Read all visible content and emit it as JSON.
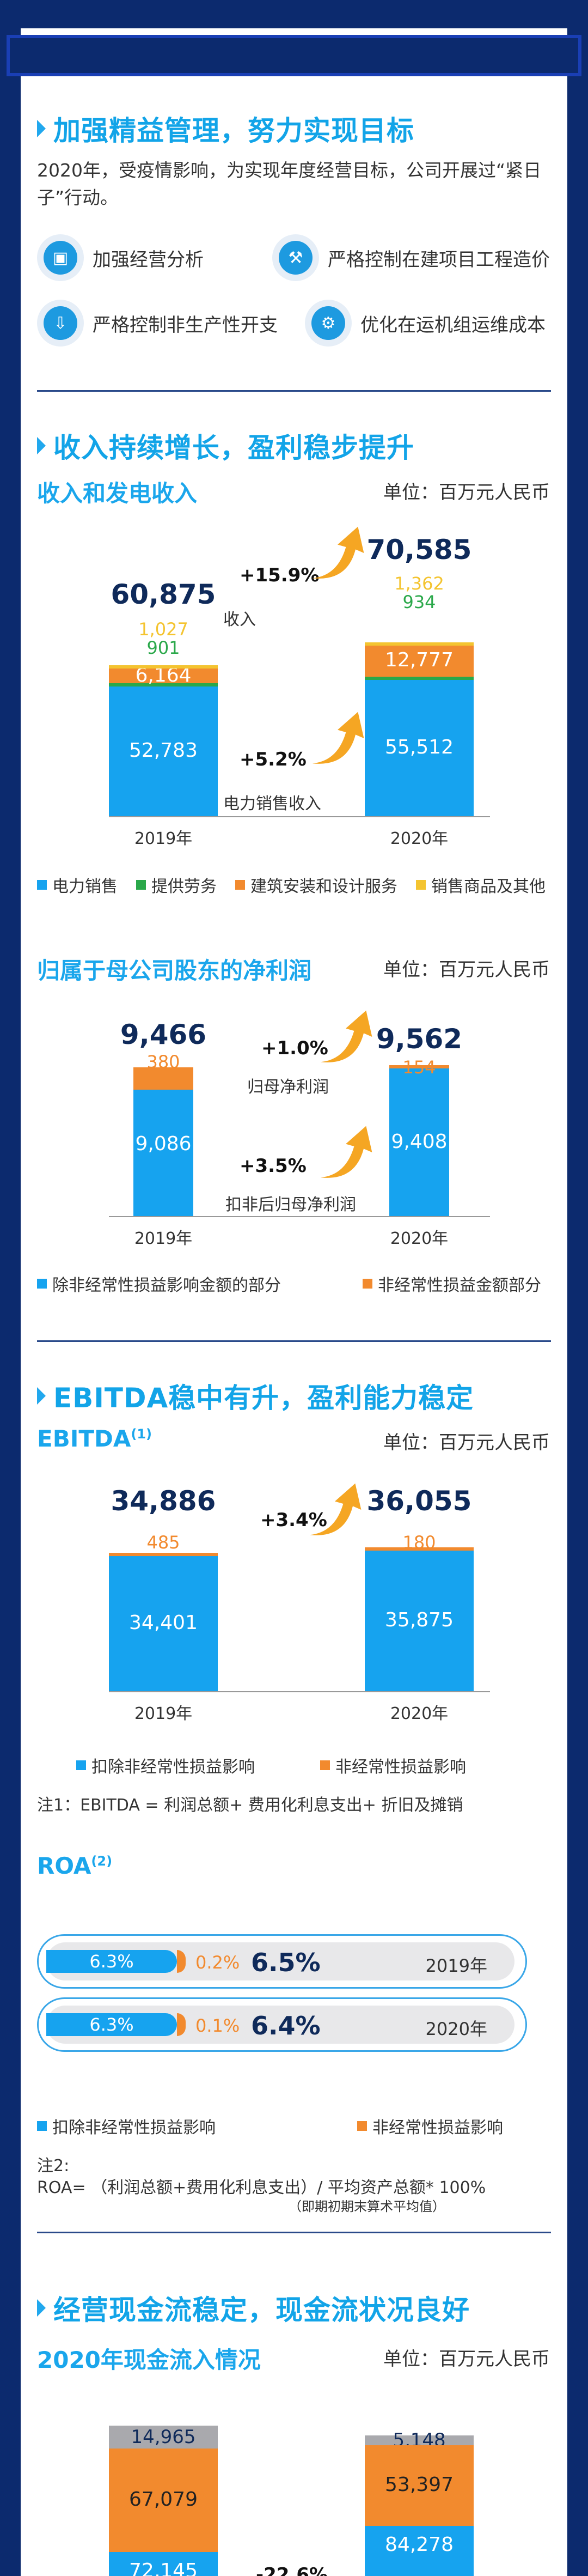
{
  "colors": {
    "blue": "#16a3ef",
    "green": "#2aa84a",
    "orange": "#f28a2e",
    "yellow": "#f4c430",
    "gray": "#a9a9ad",
    "navy": "#0c2a6e"
  },
  "section1": {
    "title": "加强精益管理，努力实现目标",
    "para": "2020年，受疫情影响，为实现年度经营目标，公司开展过“紧日子”行动。",
    "items": [
      {
        "label": "加强经营分析",
        "icon": "analysis-icon"
      },
      {
        "label": "严格控制在建项目工程造价",
        "icon": "construction-icon"
      },
      {
        "label": "严格控制非生产性开支",
        "icon": "expense-down-icon"
      },
      {
        "label": "优化在运机组运维成本",
        "icon": "maintenance-icon"
      }
    ]
  },
  "section2": {
    "title": "收入持续增长，盈利稳步提升",
    "sub": "收入和发电收入",
    "unit": "单位：百万元人民币",
    "chart_data": {
      "type": "bar",
      "categories": [
        "2019年",
        "2020年"
      ],
      "totals": [
        "60,875",
        "70,585"
      ],
      "series": [
        {
          "name": "电力销售",
          "values": [
            52783,
            55512
          ],
          "labels": [
            "52,783",
            "55,512"
          ]
        },
        {
          "name": "提供劳务",
          "values": [
            901,
            934
          ],
          "labels": [
            "901",
            "934"
          ]
        },
        {
          "name": "建筑安装和设计服务",
          "values": [
            6164,
            12777
          ],
          "labels": [
            "6,164",
            "12,777"
          ]
        },
        {
          "name": "销售商品及其他",
          "values": [
            1027,
            1362
          ],
          "labels": [
            "1,027",
            "1,362"
          ]
        }
      ],
      "growth": [
        {
          "pct": "+15.9%",
          "label": "收入"
        },
        {
          "pct": "+5.2%",
          "label": "电力销售收入"
        }
      ]
    }
  },
  "section3": {
    "sub": "归属于母公司股东的净利润",
    "unit": "单位：百万元人民币",
    "chart_data": {
      "type": "bar",
      "categories": [
        "2019年",
        "2020年"
      ],
      "totals": [
        "9,466",
        "9,562"
      ],
      "series": [
        {
          "name": "除非经常性损益影响金额的部分",
          "values": [
            9086,
            9408
          ],
          "labels": [
            "9,086",
            "9,408"
          ]
        },
        {
          "name": "非经常性损益金额部分",
          "values": [
            380,
            154
          ],
          "labels": [
            "380",
            "154"
          ]
        }
      ],
      "growth": [
        {
          "pct": "+1.0%",
          "label": "归母净利润"
        },
        {
          "pct": "+3.5%",
          "label": "扣非后归母净利润"
        }
      ]
    }
  },
  "section4": {
    "title": "EBITDA稳中有升，盈利能力稳定",
    "sub": "EBITDA",
    "sub_sup": "(1)",
    "unit": "单位：百万元人民币",
    "chart_data": {
      "type": "bar",
      "categories": [
        "2019年",
        "2020年"
      ],
      "totals": [
        "34,886",
        "36,055"
      ],
      "series": [
        {
          "name": "扣除非经常性损益影响",
          "values": [
            34401,
            35875
          ],
          "labels": [
            "34,401",
            "35,875"
          ]
        },
        {
          "name": "非经常性损益影响",
          "values": [
            485,
            180
          ],
          "labels": [
            "485",
            "180"
          ]
        }
      ],
      "growth": [
        {
          "pct": "+3.4%"
        }
      ]
    },
    "note": "注1：EBITDA = 利润总额+ 费用化利息支出+ 折旧及摊销"
  },
  "section5": {
    "sub": "ROA",
    "sub_sup": "(2)",
    "chart_data": {
      "type": "bar",
      "rows": [
        {
          "year": "2019年",
          "blue": "6.3%",
          "orange": "0.2%",
          "total": "6.5%"
        },
        {
          "year": "2020年",
          "blue": "6.3%",
          "orange": "0.1%",
          "total": "6.4%"
        }
      ],
      "legend": [
        "扣除非经常性损益影响",
        "非经常性损益影响"
      ]
    },
    "note_a": "注2:",
    "note_b": "ROA= （利润总额+费用化利息支出）/ 平均资产总额* 100%",
    "note_c": "（即期初期末算术平均值）"
  },
  "section6": {
    "title": "经营现金流稳定，现金流状况良好",
    "sub": "2020年现金流入情况",
    "unit": "单位：百万元人民币",
    "chart_data": {
      "type": "bar",
      "series": [
        {
          "name": "gray",
          "values": [
            14965,
            5148
          ],
          "labels": [
            "14,965",
            "5,148"
          ]
        },
        {
          "name": "orange",
          "values": [
            67079,
            53397
          ],
          "labels": [
            "67,079",
            "53,397"
          ]
        },
        {
          "name": "blue",
          "values": [
            72145,
            84278
          ],
          "labels": [
            "72,145",
            "84,278"
          ]
        }
      ],
      "growth": [
        {
          "pct": "-22.6%"
        }
      ]
    }
  }
}
